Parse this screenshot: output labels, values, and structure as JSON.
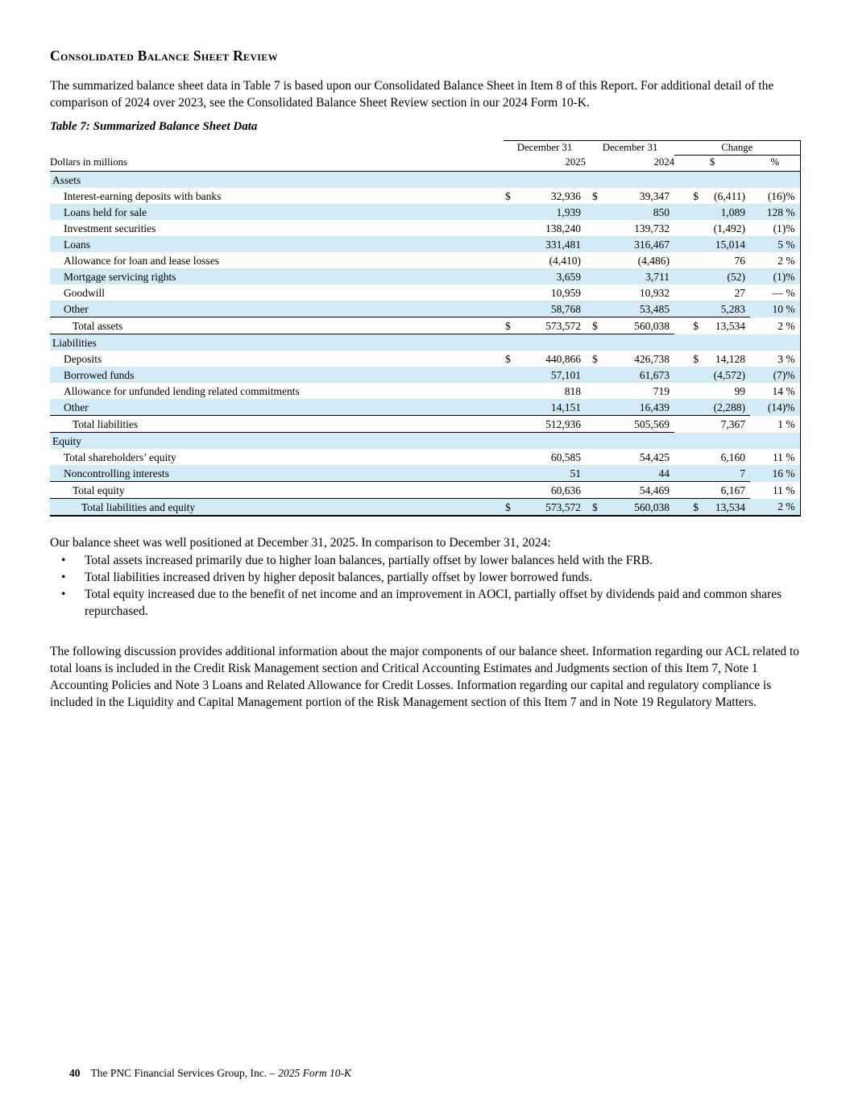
{
  "page": {
    "heading": "Consolidated Balance Sheet Review",
    "intro_paragraph": "The summarized balance sheet data in Table 7 is based upon our Consolidated Balance Sheet in Item 8 of this Report. For additional detail of the comparison of 2024 over 2023, see the Consolidated Balance Sheet Review section in our 2024 Form 10-K.",
    "table_title": "Table 7: Summarized Balance Sheet Data"
  },
  "colors": {
    "stripe_blue": "#d3eaf7",
    "rule_black": "#000000"
  },
  "table": {
    "units_label": "Dollars in millions",
    "col_headers": {
      "period1_line1": "December 31",
      "period1_line2": "2025",
      "period2_line1": "December 31",
      "period2_line2": "2024",
      "change_label": "Change",
      "change_dollar": "$",
      "change_pct": "%"
    },
    "rows": [
      {
        "type": "section",
        "label": "Assets"
      },
      {
        "label": "Interest-earning deposits with banks",
        "indent": 1,
        "s1": "$",
        "v2025": "32,936",
        "s2": "$",
        "v2024": "39,347",
        "s3": "$",
        "chg": "(6,411)",
        "pct": "(16)%"
      },
      {
        "label": "Loans held for sale",
        "indent": 1,
        "v2025": "1,939",
        "v2024": "850",
        "chg": "1,089",
        "pct": "128 %"
      },
      {
        "label": "Investment securities",
        "indent": 1,
        "v2025": "138,240",
        "v2024": "139,732",
        "chg": "(1,492)",
        "pct": "(1)%"
      },
      {
        "label": "Loans",
        "indent": 1,
        "v2025": "331,481",
        "v2024": "316,467",
        "chg": "15,014",
        "pct": "5 %"
      },
      {
        "label": "Allowance for loan and lease losses",
        "indent": 1,
        "v2025": "(4,410)",
        "v2024": "(4,486)",
        "chg": "76",
        "pct": "2 %"
      },
      {
        "label": "Mortgage servicing rights",
        "indent": 1,
        "v2025": "3,659",
        "v2024": "3,711",
        "chg": "(52)",
        "pct": "(1)%"
      },
      {
        "label": "Goodwill",
        "indent": 1,
        "v2025": "10,959",
        "v2024": "10,932",
        "chg": "27",
        "pct": "— %"
      },
      {
        "label": "Other",
        "indent": 1,
        "v2025": "58,768",
        "v2024": "53,485",
        "chg": "5,283",
        "pct": "10 %",
        "rule": "nums"
      },
      {
        "label": "Total assets",
        "indent": 2,
        "s1": "$",
        "v2025": "573,572",
        "s2": "$",
        "v2024": "560,038",
        "s3": "$",
        "chg": "13,534",
        "pct": "2 %",
        "rule": "mid"
      },
      {
        "type": "section",
        "label": "Liabilities"
      },
      {
        "label": "Deposits",
        "indent": 1,
        "s1": "$",
        "v2025": "440,866",
        "s2": "$",
        "v2024": "426,738",
        "s3": "$",
        "chg": "14,128",
        "pct": "3 %"
      },
      {
        "label": "Borrowed funds",
        "indent": 1,
        "v2025": "57,101",
        "v2024": "61,673",
        "chg": "(4,572)",
        "pct": "(7)%"
      },
      {
        "label": "Allowance for unfunded lending related commitments",
        "indent": 1,
        "v2025": "818",
        "v2024": "719",
        "chg": "99",
        "pct": "14 %"
      },
      {
        "label": "Other",
        "indent": 1,
        "v2025": "14,151",
        "v2024": "16,439",
        "chg": "(2,288)",
        "pct": "(14)%",
        "rule": "nums"
      },
      {
        "label": "Total liabilities",
        "indent": 2,
        "v2025": "512,936",
        "v2024": "505,569",
        "chg": "7,367",
        "pct": "1 %",
        "rule": "mid"
      },
      {
        "type": "section",
        "label": "Equity"
      },
      {
        "label": "Total shareholders’ equity",
        "indent": 1,
        "v2025": "60,585",
        "v2024": "54,425",
        "chg": "6,160",
        "pct": "11 %"
      },
      {
        "label": "Noncontrolling interests",
        "indent": 1,
        "v2025": "51",
        "v2024": "44",
        "chg": "7",
        "pct": "16 %",
        "rule": "nums"
      },
      {
        "label": "Total equity",
        "indent": 2,
        "v2025": "60,636",
        "v2024": "54,469",
        "chg": "6,167",
        "pct": "11 %",
        "rule": "nums"
      },
      {
        "label": "Total liabilities and equity",
        "indent": 3,
        "s1": "$",
        "v2025": "573,572",
        "s2": "$",
        "v2024": "560,038",
        "s3": "$",
        "chg": "13,534",
        "pct": "2 %",
        "rule": "bottom"
      }
    ]
  },
  "commentary": {
    "intro": "Our balance sheet was well positioned at December 31, 2025. In comparison to December 31, 2024:",
    "bullets": [
      "Total assets increased primarily due to higher loan balances, partially offset by lower balances held with the FRB.",
      "Total liabilities increased driven by higher deposit balances, partially offset by lower borrowed funds.",
      "Total equity increased due to the benefit of net income and an improvement in AOCI, partially offset by dividends paid and common shares repurchased."
    ]
  },
  "closing_paragraph": "The following discussion provides additional information about the major components of our balance sheet. Information regarding our ACL related to total loans is included in the Credit Risk Management section and Critical Accounting Estimates and Judgments section of this Item 7, Note 1 Accounting Policies and Note 3 Loans and Related Allowance for Credit Losses. Information regarding our capital and regulatory compliance is included in the Liquidity and Capital Management portion of the Risk Management section of this Item 7 and in Note 19 Regulatory Matters.",
  "footer": {
    "page_number": "40",
    "company_line": "The PNC Financial Services Group, Inc. –",
    "form_title": "2025 Form 10-K"
  }
}
